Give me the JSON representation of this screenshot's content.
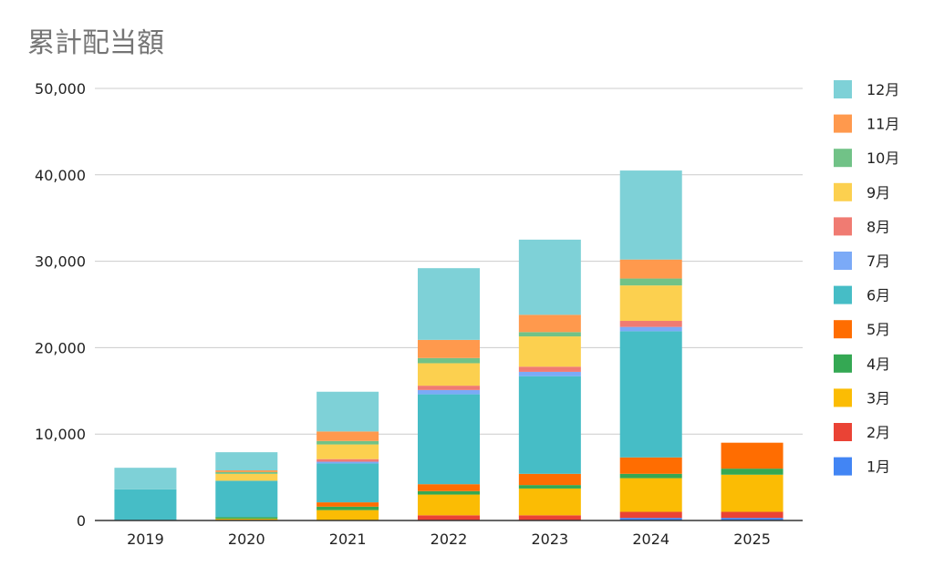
{
  "chart_data": {
    "type": "bar",
    "stacked": true,
    "title": "累計配当額",
    "xlabel": "",
    "ylabel": "",
    "ylim": [
      0,
      50000
    ],
    "yticks": [
      0,
      10000,
      20000,
      30000,
      40000,
      50000
    ],
    "ytick_labels": [
      "0",
      "10,000",
      "20,000",
      "30,000",
      "40,000",
      "50,000"
    ],
    "grid": true,
    "legend_position": "right",
    "categories": [
      "2019",
      "2020",
      "2021",
      "2022",
      "2023",
      "2024",
      "2025"
    ],
    "series": [
      {
        "name": "1月",
        "color": "#4285f4",
        "values": [
          0,
          0,
          0,
          0,
          0,
          300,
          300
        ]
      },
      {
        "name": "2月",
        "color": "#ea4335",
        "values": [
          0,
          0,
          0,
          600,
          600,
          700,
          700
        ]
      },
      {
        "name": "3月",
        "color": "#fbbc04",
        "values": [
          0,
          200,
          1200,
          2400,
          3100,
          3900,
          4300
        ]
      },
      {
        "name": "4月",
        "color": "#34a853",
        "values": [
          0,
          200,
          400,
          400,
          400,
          500,
          700
        ]
      },
      {
        "name": "5月",
        "color": "#ff6d01",
        "values": [
          0,
          0,
          500,
          800,
          1300,
          1900,
          3000
        ]
      },
      {
        "name": "6月",
        "color": "#46bdc6",
        "values": [
          3600,
          4200,
          4500,
          10400,
          11300,
          14600,
          0
        ]
      },
      {
        "name": "7月",
        "color": "#7baaf7",
        "values": [
          0,
          0,
          200,
          500,
          500,
          500,
          0
        ]
      },
      {
        "name": "8月",
        "color": "#f07b72",
        "values": [
          0,
          0,
          300,
          500,
          600,
          700,
          0
        ]
      },
      {
        "name": "9月",
        "color": "#fcd04f",
        "values": [
          0,
          800,
          1700,
          2600,
          3500,
          4100,
          0
        ]
      },
      {
        "name": "10月",
        "color": "#71c287",
        "values": [
          0,
          200,
          400,
          600,
          500,
          800,
          0
        ]
      },
      {
        "name": "11月",
        "color": "#ff994d",
        "values": [
          0,
          200,
          1100,
          2100,
          2000,
          2200,
          0
        ]
      },
      {
        "name": "12月",
        "color": "#7ed1d7",
        "values": [
          2500,
          2100,
          4600,
          8300,
          8700,
          10300,
          0
        ]
      }
    ]
  }
}
